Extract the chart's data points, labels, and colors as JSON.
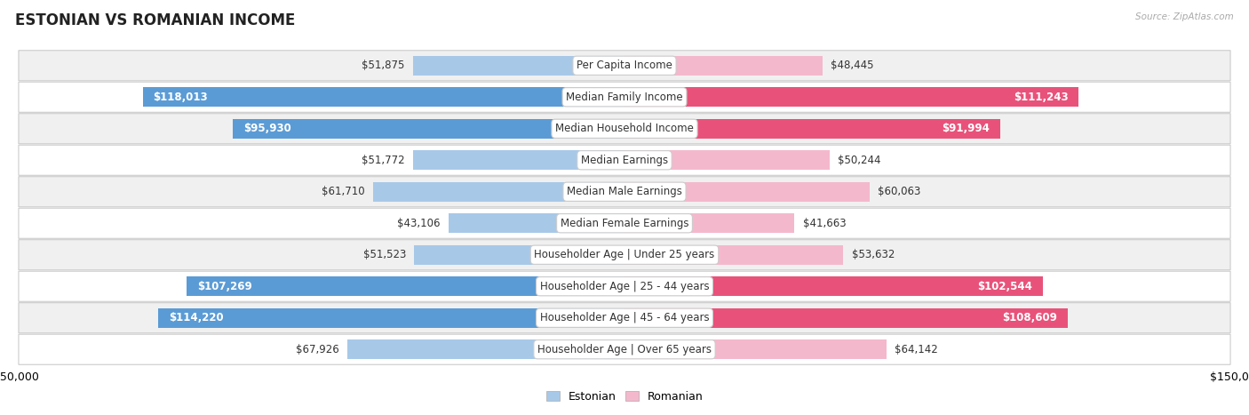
{
  "title": "ESTONIAN VS ROMANIAN INCOME",
  "source": "Source: ZipAtlas.com",
  "categories": [
    "Per Capita Income",
    "Median Family Income",
    "Median Household Income",
    "Median Earnings",
    "Median Male Earnings",
    "Median Female Earnings",
    "Householder Age | Under 25 years",
    "Householder Age | 25 - 44 years",
    "Householder Age | 45 - 64 years",
    "Householder Age | Over 65 years"
  ],
  "estonian_values": [
    51875,
    118013,
    95930,
    51772,
    61710,
    43106,
    51523,
    107269,
    114220,
    67926
  ],
  "romanian_values": [
    48445,
    111243,
    91994,
    50244,
    60063,
    41663,
    53632,
    102544,
    108609,
    64142
  ],
  "estonian_labels": [
    "$51,875",
    "$118,013",
    "$95,930",
    "$51,772",
    "$61,710",
    "$43,106",
    "$51,523",
    "$107,269",
    "$114,220",
    "$67,926"
  ],
  "romanian_labels": [
    "$48,445",
    "$111,243",
    "$91,994",
    "$50,244",
    "$60,063",
    "$41,663",
    "$53,632",
    "$102,544",
    "$108,609",
    "$64,142"
  ],
  "estonian_color_light": "#a8c8e8",
  "estonian_color_dark": "#5b9bd5",
  "romanian_color_light": "#f4b8cc",
  "romanian_color_dark": "#e8527a",
  "max_value": 150000,
  "bar_height": 0.62,
  "background_color": "#ffffff",
  "row_background_alt": "#f0f0f0",
  "title_fontsize": 12,
  "label_fontsize": 8.5,
  "category_fontsize": 8.5,
  "axis_fontsize": 9,
  "large_threshold": 80000
}
